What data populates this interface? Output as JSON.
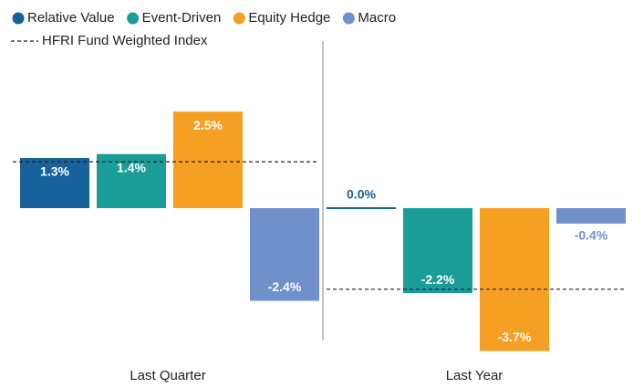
{
  "chart_data": {
    "type": "bar",
    "categories": [
      "Last Quarter",
      "Last Year"
    ],
    "series": [
      {
        "name": "Relative Value",
        "color": "#17629a",
        "values": [
          1.3,
          0.0
        ],
        "value_labels": [
          "1.3%",
          "0.0%"
        ]
      },
      {
        "name": "Event-Driven",
        "color": "#1a9d98",
        "values": [
          1.4,
          -2.2
        ],
        "value_labels": [
          "1.4%",
          "-2.2%"
        ]
      },
      {
        "name": "Equity Hedge",
        "color": "#f6a023",
        "values": [
          2.5,
          -3.7
        ],
        "value_labels": [
          "2.5%",
          "-3.7%"
        ]
      },
      {
        "name": "Macro",
        "color": "#7090cc",
        "values": [
          -2.4,
          -0.4
        ],
        "value_labels": [
          "-2.4%",
          "-0.4%"
        ]
      }
    ],
    "benchmark": {
      "name": "HFRI Fund Weighted Index",
      "values": [
        1.2,
        -2.1
      ]
    }
  }
}
